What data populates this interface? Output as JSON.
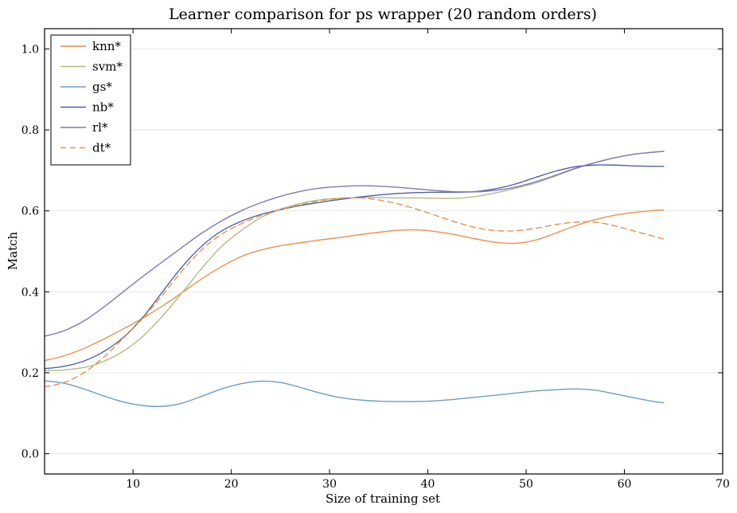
{
  "chart_data": {
    "type": "line",
    "title": "Learner comparison for ps wrapper (20 random orders)",
    "xlabel": "Size of training set",
    "ylabel": "Match",
    "xlim": [
      1,
      70
    ],
    "ylim": [
      -0.05,
      1.05
    ],
    "xticks": [
      10,
      20,
      30,
      40,
      50,
      60,
      70
    ],
    "yticks": [
      0.0,
      0.2,
      0.4,
      0.6,
      0.8,
      1.0
    ],
    "xtick_labels": [
      "10",
      "20",
      "30",
      "40",
      "50",
      "60",
      "70"
    ],
    "ytick_labels": [
      "0.0",
      "0.2",
      "0.4",
      "0.6",
      "0.8",
      "1.0"
    ],
    "grid": "horizontal",
    "legend_position": "top-left",
    "series": [
      {
        "name": "knn*",
        "color": "#e8914a",
        "dash": "solid",
        "x": [
          1,
          3,
          5,
          7,
          9,
          11,
          13,
          15,
          17,
          19,
          21,
          23,
          25,
          27,
          29,
          31,
          33,
          35,
          37,
          39,
          41,
          43,
          45,
          47,
          49,
          51,
          53,
          55,
          57,
          59,
          61,
          63,
          64
        ],
        "y": [
          0.23,
          0.242,
          0.26,
          0.283,
          0.308,
          0.335,
          0.365,
          0.398,
          0.432,
          0.462,
          0.487,
          0.503,
          0.514,
          0.521,
          0.528,
          0.534,
          0.541,
          0.547,
          0.552,
          0.553,
          0.548,
          0.54,
          0.53,
          0.522,
          0.52,
          0.528,
          0.545,
          0.563,
          0.578,
          0.589,
          0.596,
          0.601,
          0.602
        ]
      },
      {
        "name": "svm*",
        "color": "#b2bb84",
        "dash": "solid",
        "x": [
          1,
          3,
          5,
          7,
          9,
          11,
          13,
          15,
          17,
          19,
          21,
          23,
          25,
          27,
          29,
          31,
          33,
          35,
          37,
          39,
          41,
          43,
          45,
          47,
          49,
          51,
          53,
          55,
          57,
          59,
          61,
          63,
          64
        ],
        "y": [
          0.205,
          0.207,
          0.213,
          0.228,
          0.253,
          0.29,
          0.34,
          0.398,
          0.458,
          0.512,
          0.551,
          0.583,
          0.604,
          0.618,
          0.627,
          0.631,
          0.633,
          0.633,
          0.632,
          0.632,
          0.631,
          0.631,
          0.636,
          0.645,
          0.656,
          0.669,
          0.686,
          0.704,
          0.719,
          0.731,
          0.74,
          0.745,
          0.747
        ]
      },
      {
        "name": "gs*",
        "color": "#6c9fc4",
        "dash": "solid",
        "x": [
          1,
          3,
          5,
          7,
          9,
          11,
          13,
          15,
          17,
          19,
          21,
          23,
          25,
          27,
          29,
          31,
          33,
          35,
          37,
          39,
          41,
          43,
          45,
          47,
          49,
          51,
          53,
          55,
          57,
          59,
          61,
          63,
          64
        ],
        "y": [
          0.18,
          0.174,
          0.16,
          0.143,
          0.128,
          0.119,
          0.117,
          0.125,
          0.142,
          0.16,
          0.173,
          0.179,
          0.176,
          0.164,
          0.15,
          0.139,
          0.133,
          0.13,
          0.129,
          0.129,
          0.131,
          0.135,
          0.14,
          0.145,
          0.15,
          0.155,
          0.158,
          0.16,
          0.157,
          0.148,
          0.138,
          0.129,
          0.126
        ]
      },
      {
        "name": "nb*",
        "color": "#4e62a6",
        "dash": "solid",
        "x": [
          1,
          3,
          5,
          7,
          9,
          11,
          13,
          15,
          17,
          19,
          21,
          23,
          25,
          27,
          29,
          31,
          33,
          35,
          37,
          39,
          41,
          43,
          45,
          47,
          49,
          51,
          53,
          55,
          57,
          59,
          61,
          63,
          64
        ],
        "y": [
          0.21,
          0.216,
          0.229,
          0.252,
          0.287,
          0.337,
          0.4,
          0.462,
          0.513,
          0.55,
          0.574,
          0.591,
          0.603,
          0.613,
          0.621,
          0.628,
          0.634,
          0.639,
          0.643,
          0.645,
          0.646,
          0.646,
          0.648,
          0.655,
          0.667,
          0.683,
          0.698,
          0.709,
          0.713,
          0.713,
          0.711,
          0.71,
          0.71
        ]
      },
      {
        "name": "rl*",
        "color": "#8478b2",
        "dash": "solid",
        "x": [
          1,
          3,
          5,
          7,
          9,
          11,
          13,
          15,
          17,
          19,
          21,
          23,
          25,
          27,
          29,
          31,
          33,
          35,
          37,
          39,
          41,
          43,
          45,
          47,
          49,
          51,
          53,
          55,
          57,
          59,
          61,
          63,
          64
        ],
        "y": [
          0.29,
          0.304,
          0.328,
          0.362,
          0.4,
          0.438,
          0.474,
          0.51,
          0.545,
          0.575,
          0.6,
          0.62,
          0.636,
          0.648,
          0.656,
          0.66,
          0.662,
          0.661,
          0.658,
          0.654,
          0.65,
          0.647,
          0.647,
          0.651,
          0.659,
          0.672,
          0.688,
          0.705,
          0.719,
          0.731,
          0.74,
          0.745,
          0.747
        ]
      },
      {
        "name": "dt*",
        "color": "#e8914a",
        "dash": "dashed",
        "x": [
          1,
          3,
          5,
          7,
          9,
          11,
          13,
          15,
          17,
          19,
          21,
          23,
          25,
          27,
          29,
          31,
          33,
          35,
          37,
          39,
          41,
          43,
          45,
          47,
          49,
          51,
          53,
          55,
          57,
          59,
          61,
          63,
          64
        ],
        "y": [
          0.165,
          0.176,
          0.2,
          0.238,
          0.285,
          0.335,
          0.392,
          0.452,
          0.504,
          0.542,
          0.568,
          0.588,
          0.603,
          0.615,
          0.625,
          0.631,
          0.632,
          0.627,
          0.617,
          0.603,
          0.587,
          0.571,
          0.558,
          0.551,
          0.551,
          0.557,
          0.566,
          0.572,
          0.572,
          0.563,
          0.55,
          0.537,
          0.53
        ]
      }
    ]
  }
}
